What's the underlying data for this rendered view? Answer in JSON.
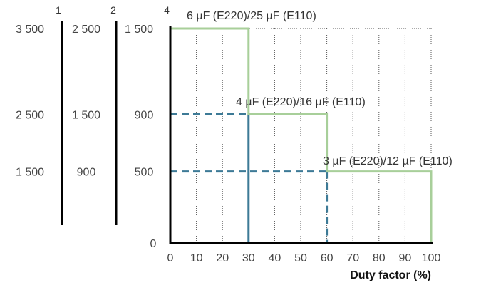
{
  "chart_data": {
    "type": "line",
    "xlabel": "Duty factor (%)",
    "xlim": [
      0,
      100
    ],
    "xticks": [
      "0",
      "10",
      "20",
      "30",
      "40",
      "50",
      "60",
      "70",
      "80",
      "90",
      "100"
    ],
    "ylim": [
      0,
      1500
    ],
    "grid": "dotted vertical lines every 10% and top border",
    "axes": [
      {
        "id": "",
        "ticks": [
          "3 500",
          "2 500",
          "1 500"
        ]
      },
      {
        "id": "1",
        "ticks": [
          "2 500",
          "1 500",
          "900"
        ]
      },
      {
        "id": "2",
        "ticks": [
          "1 500",
          "900",
          "500",
          "0"
        ]
      },
      {
        "id": "4",
        "ticks": []
      }
    ],
    "series": [
      {
        "color": "#a8cf9a",
        "style": "solid",
        "points": [
          [
            0,
            1500
          ],
          [
            30,
            1500
          ],
          [
            30,
            900
          ],
          [
            60,
            900
          ],
          [
            60,
            500
          ],
          [
            100,
            500
          ],
          [
            100,
            0
          ]
        ]
      }
    ],
    "annotations": [
      {
        "text": "6 µF (E220)/25 µF (E110)",
        "x": 30,
        "y": 1500
      },
      {
        "text": "4 µF (E220)/16 µF (E110)",
        "x": 60,
        "y": 900
      },
      {
        "text": "3 µF (E220)/12 µF (E110)",
        "x": 100,
        "y": 500
      }
    ],
    "reference_lines": [
      {
        "color": "#3d7a96",
        "style": "dashed",
        "points": [
          [
            0,
            900
          ],
          [
            30,
            900
          ]
        ]
      },
      {
        "color": "#3d7a96",
        "style": "dashed",
        "points": [
          [
            0,
            500
          ],
          [
            60,
            500
          ]
        ]
      },
      {
        "color": "#3d7a96",
        "style": "solid",
        "points": [
          [
            30,
            900
          ],
          [
            30,
            0
          ]
        ]
      },
      {
        "color": "#3d7a96",
        "style": "dashed",
        "points": [
          [
            60,
            500
          ],
          [
            60,
            0
          ]
        ]
      }
    ]
  }
}
